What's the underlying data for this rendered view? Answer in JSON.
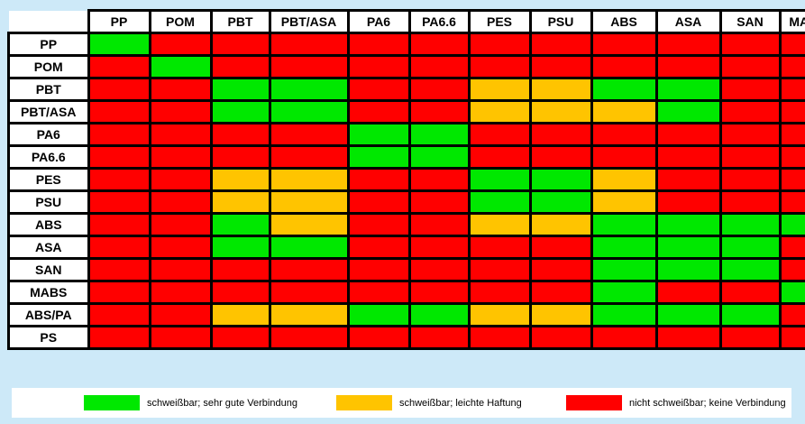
{
  "page": {
    "background": "#cde9f8"
  },
  "chart_data": {
    "type": "heatmap",
    "title": "",
    "columns": [
      "PP",
      "POM",
      "PBT",
      "PBT/ASA",
      "PA6",
      "PA6.6",
      "PES",
      "PSU",
      "ABS",
      "ASA",
      "SAN",
      "MABS"
    ],
    "rows": [
      "PP",
      "POM",
      "PBT",
      "PBT/ASA",
      "PA6",
      "PA6.6",
      "PES",
      "PSU",
      "ABS",
      "ASA",
      "SAN",
      "MABS",
      "ABS/PA",
      "PS"
    ],
    "matrix": [
      [
        "g",
        "r",
        "r",
        "r",
        "r",
        "r",
        "r",
        "r",
        "r",
        "r",
        "r",
        "r"
      ],
      [
        "r",
        "g",
        "r",
        "r",
        "r",
        "r",
        "r",
        "r",
        "r",
        "r",
        "r",
        "r"
      ],
      [
        "r",
        "r",
        "g",
        "g",
        "r",
        "r",
        "o",
        "o",
        "g",
        "g",
        "r",
        "r"
      ],
      [
        "r",
        "r",
        "g",
        "g",
        "r",
        "r",
        "o",
        "o",
        "o",
        "g",
        "r",
        "r"
      ],
      [
        "r",
        "r",
        "r",
        "r",
        "g",
        "g",
        "r",
        "r",
        "r",
        "r",
        "r",
        "r"
      ],
      [
        "r",
        "r",
        "r",
        "r",
        "g",
        "g",
        "r",
        "r",
        "r",
        "r",
        "r",
        "r"
      ],
      [
        "r",
        "r",
        "o",
        "o",
        "r",
        "r",
        "g",
        "g",
        "o",
        "r",
        "r",
        "r"
      ],
      [
        "r",
        "r",
        "o",
        "o",
        "r",
        "r",
        "g",
        "g",
        "o",
        "r",
        "r",
        "r"
      ],
      [
        "r",
        "r",
        "g",
        "o",
        "r",
        "r",
        "o",
        "o",
        "g",
        "g",
        "g",
        "g"
      ],
      [
        "r",
        "r",
        "g",
        "g",
        "r",
        "r",
        "r",
        "r",
        "g",
        "g",
        "g",
        "r"
      ],
      [
        "r",
        "r",
        "r",
        "r",
        "r",
        "r",
        "r",
        "r",
        "g",
        "g",
        "g",
        "r"
      ],
      [
        "r",
        "r",
        "r",
        "r",
        "r",
        "r",
        "r",
        "r",
        "g",
        "r",
        "r",
        "g"
      ],
      [
        "r",
        "r",
        "o",
        "o",
        "g",
        "g",
        "o",
        "o",
        "g",
        "g",
        "g",
        "r"
      ],
      [
        "r",
        "r",
        "r",
        "r",
        "r",
        "r",
        "r",
        "r",
        "r",
        "r",
        "r",
        "r"
      ]
    ],
    "legend": [
      {
        "code": "g",
        "color": "#00e800",
        "label": "schweißbar; sehr gute Verbindung"
      },
      {
        "code": "o",
        "color": "#ffc400",
        "label": "schweißbar; leichte Haftung"
      },
      {
        "code": "r",
        "color": "#ff0000",
        "label": "nicht schweißbar; keine Verbindung"
      }
    ],
    "legend_position": "bottom",
    "grid": true
  }
}
